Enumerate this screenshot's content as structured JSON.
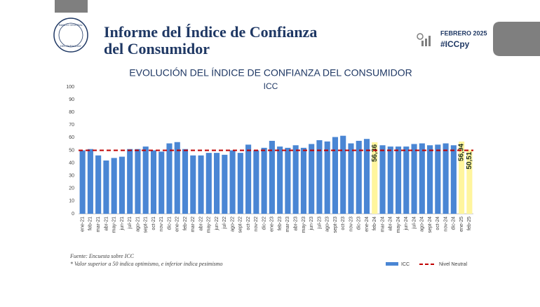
{
  "header": {
    "title_line1": "Informe del Índice de Confianza",
    "title_line2": "del Consumidor",
    "logo_top": "BANCO CENTRAL",
    "logo_bottom": "DEL PARAGUAY",
    "date": "FEBRERO 2025",
    "hashtag": "#ICCpy"
  },
  "chart_data": {
    "type": "bar",
    "title": "EVOLUCIÓN DEL ÍNDICE DE CONFIANZA DEL CONSUMIDOR",
    "subtitle": "ICC",
    "categories": [
      "ene-21",
      "feb-21",
      "mar-21",
      "abr-21",
      "may-21",
      "jun-21",
      "jul-21",
      "ago-21",
      "sept-21",
      "oct-21",
      "nov-21",
      "dic-21",
      "ene-22",
      "feb-22",
      "mar-22",
      "abr-22",
      "may-22",
      "jun-22",
      "jul-22",
      "ago-22",
      "sept-22",
      "oct-22",
      "nov-22",
      "dic-22",
      "ene-23",
      "feb-23",
      "mar-23",
      "abr-23",
      "may-23",
      "jun-23",
      "jul-23",
      "ago-23",
      "sept-23",
      "oct-23",
      "nov-23",
      "dic-23",
      "ene-24",
      "feb-24",
      "mar-24",
      "abr-24",
      "may-24",
      "jun-24",
      "jul-24",
      "ago-24",
      "sept-24",
      "oct-24",
      "nov-24",
      "dic-24",
      "ene-25",
      "feb-25"
    ],
    "series": [
      {
        "name": "ICC",
        "color": "#4a86d4",
        "values": [
          50,
          51,
          46,
          42,
          44,
          45,
          51,
          51,
          53,
          50,
          49,
          55.5,
          56.5,
          51,
          46,
          46,
          48,
          48,
          46.5,
          50,
          48,
          54.5,
          50,
          52,
          57.5,
          53,
          52,
          54,
          52,
          55,
          58,
          57,
          60.5,
          61.5,
          55.5,
          57.5,
          59,
          56.36,
          54,
          53,
          53,
          53,
          55,
          55.5,
          54,
          54.5,
          55.5,
          54,
          56.94,
          50.51
        ],
        "colors": [
          "#4a86d4",
          "#4a86d4",
          "#4a86d4",
          "#4a86d4",
          "#4a86d4",
          "#4a86d4",
          "#4a86d4",
          "#4a86d4",
          "#4a86d4",
          "#4a86d4",
          "#4a86d4",
          "#4a86d4",
          "#4a86d4",
          "#4a86d4",
          "#4a86d4",
          "#4a86d4",
          "#4a86d4",
          "#4a86d4",
          "#4a86d4",
          "#4a86d4",
          "#4a86d4",
          "#4a86d4",
          "#4a86d4",
          "#4a86d4",
          "#4a86d4",
          "#4a86d4",
          "#4a86d4",
          "#4a86d4",
          "#4a86d4",
          "#4a86d4",
          "#4a86d4",
          "#4a86d4",
          "#4a86d4",
          "#4a86d4",
          "#4a86d4",
          "#4a86d4",
          "#4a86d4",
          "#fff59d",
          "#4a86d4",
          "#4a86d4",
          "#4a86d4",
          "#4a86d4",
          "#4a86d4",
          "#4a86d4",
          "#4a86d4",
          "#4a86d4",
          "#4a86d4",
          "#4a86d4",
          "#fff59d",
          "#fff59d"
        ],
        "value_labels": [
          null,
          null,
          null,
          null,
          null,
          null,
          null,
          null,
          null,
          null,
          null,
          null,
          null,
          null,
          null,
          null,
          null,
          null,
          null,
          null,
          null,
          null,
          null,
          null,
          null,
          null,
          null,
          null,
          null,
          null,
          null,
          null,
          null,
          null,
          null,
          null,
          null,
          "56,36",
          null,
          null,
          null,
          null,
          null,
          null,
          null,
          null,
          null,
          null,
          "56,94",
          "50,51"
        ]
      }
    ],
    "reference": {
      "name": "Nivel Neutral",
      "value": 50,
      "color": "#c00000"
    },
    "ylim": [
      0,
      100
    ],
    "yticks": [
      0,
      10,
      20,
      30,
      40,
      50,
      60,
      70,
      80,
      90,
      100
    ],
    "grid": false
  },
  "footnotes": [
    "Fuente: Encuesta sobre ICC",
    "* Valor superior a 50 indica optimismo, e inferior indica pesimismo"
  ]
}
